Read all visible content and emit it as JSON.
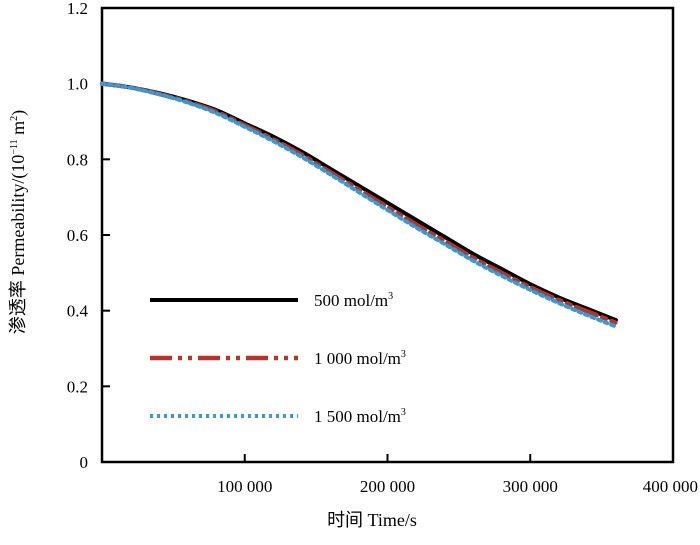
{
  "chart_data": {
    "type": "line",
    "title": "",
    "xlabel": "时间 Time/s",
    "ylabel_main": "渗透率 Permeability/(10",
    "ylabel_exp": "−11",
    "ylabel_unit": " m",
    "ylabel_unit_exp": "2",
    "ylabel_close": ")",
    "xlim": [
      0,
      400000
    ],
    "ylim": [
      0,
      1.2
    ],
    "x_ticks": [
      100000,
      200000,
      300000,
      400000
    ],
    "x_tick_labels": [
      "100 000",
      "200 000",
      "300 000",
      "400 000"
    ],
    "y_ticks": [
      0,
      0.2,
      0.4,
      0.6,
      0.8,
      1.0,
      1.2
    ],
    "y_tick_labels": [
      "0",
      "0.2",
      "0.4",
      "0.6",
      "0.8",
      "1.0",
      "1.2"
    ],
    "legend_position": "lower-left",
    "x": [
      0,
      20000,
      40000,
      60000,
      80000,
      100000,
      120000,
      140000,
      160000,
      180000,
      200000,
      220000,
      240000,
      260000,
      280000,
      300000,
      320000,
      340000,
      360000
    ],
    "series": [
      {
        "name": "500 mol/m",
        "unit_exp": "3",
        "color": "#000000",
        "style": "solid",
        "values": [
          1.0,
          0.99,
          0.975,
          0.955,
          0.93,
          0.895,
          0.86,
          0.82,
          0.775,
          0.73,
          0.685,
          0.64,
          0.595,
          0.55,
          0.51,
          0.47,
          0.435,
          0.405,
          0.375
        ]
      },
      {
        "name": "1 000 mol/m",
        "unit_exp": "3",
        "color": "#b5352b",
        "style": "dashdot",
        "values": [
          1.0,
          0.99,
          0.973,
          0.952,
          0.926,
          0.89,
          0.853,
          0.812,
          0.766,
          0.72,
          0.674,
          0.628,
          0.584,
          0.54,
          0.5,
          0.462,
          0.428,
          0.398,
          0.368
        ]
      },
      {
        "name": "1 500 mol/m",
        "unit_exp": "3",
        "color": "#3a9ad0",
        "style": "dotted",
        "values": [
          1.0,
          0.989,
          0.972,
          0.95,
          0.922,
          0.886,
          0.848,
          0.806,
          0.76,
          0.713,
          0.666,
          0.62,
          0.576,
          0.532,
          0.492,
          0.455,
          0.42,
          0.388,
          0.358
        ]
      }
    ]
  }
}
